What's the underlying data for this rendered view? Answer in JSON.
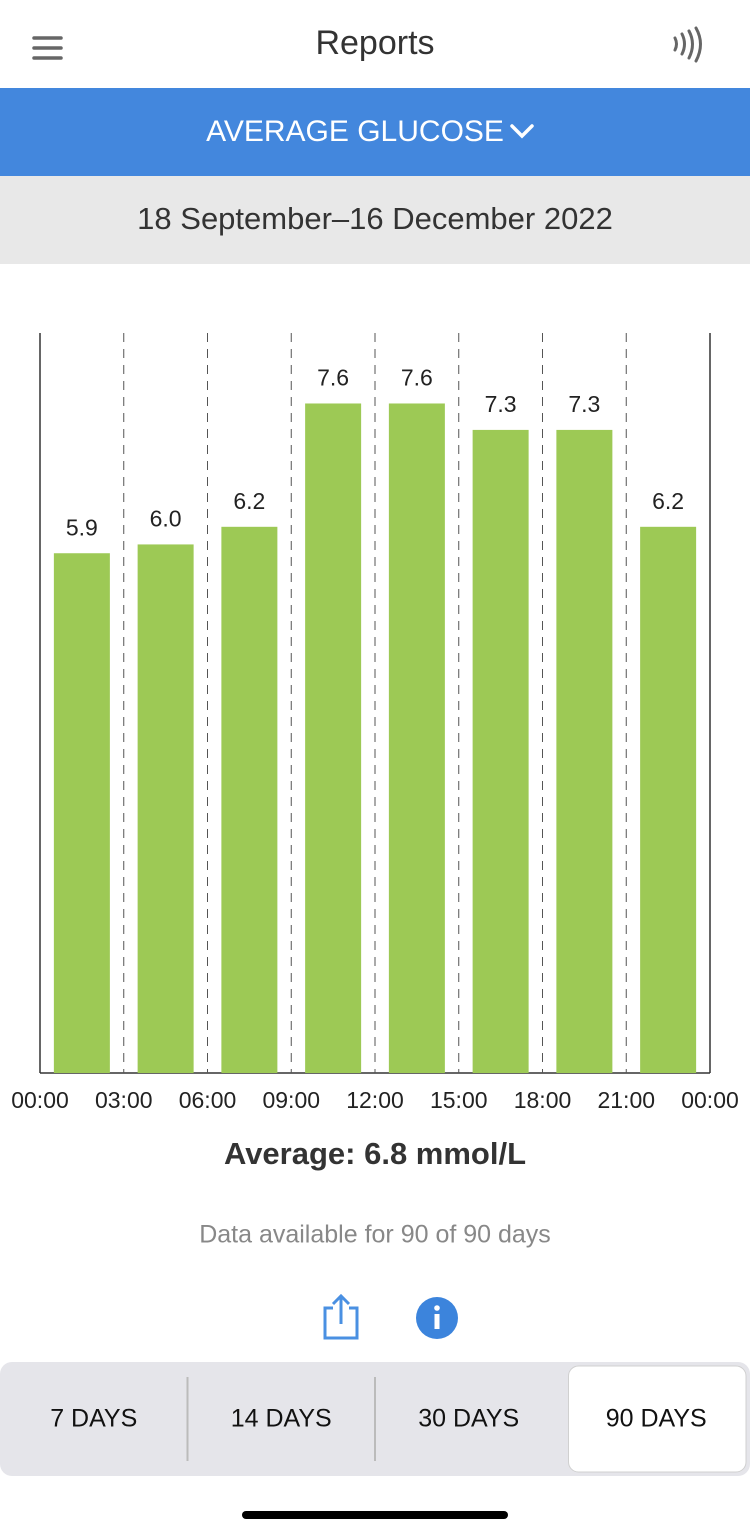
{
  "header": {
    "title": "Reports"
  },
  "report_selector": {
    "label": "AVERAGE GLUCOSE"
  },
  "date_range": "18 September–16 December 2022",
  "chart_data": {
    "type": "bar",
    "x_labels": [
      "00:00",
      "03:00",
      "06:00",
      "09:00",
      "12:00",
      "15:00",
      "18:00",
      "21:00",
      "00:00"
    ],
    "values": [
      5.9,
      6.0,
      6.2,
      7.6,
      7.6,
      7.3,
      7.3,
      6.2
    ],
    "value_labels": [
      "5.9",
      "6.0",
      "6.2",
      "7.6",
      "7.6",
      "7.3",
      "7.3",
      "6.2"
    ],
    "color": "#9dc955",
    "ylim": [
      0,
      8.4
    ],
    "grid": true
  },
  "summary": "Average: 6.8 mmol/L",
  "availability": "Data available for 90 of 90 days",
  "tabs": [
    "7 DAYS",
    "14 DAYS",
    "30 DAYS",
    "90 DAYS"
  ],
  "selected_tab": 3
}
